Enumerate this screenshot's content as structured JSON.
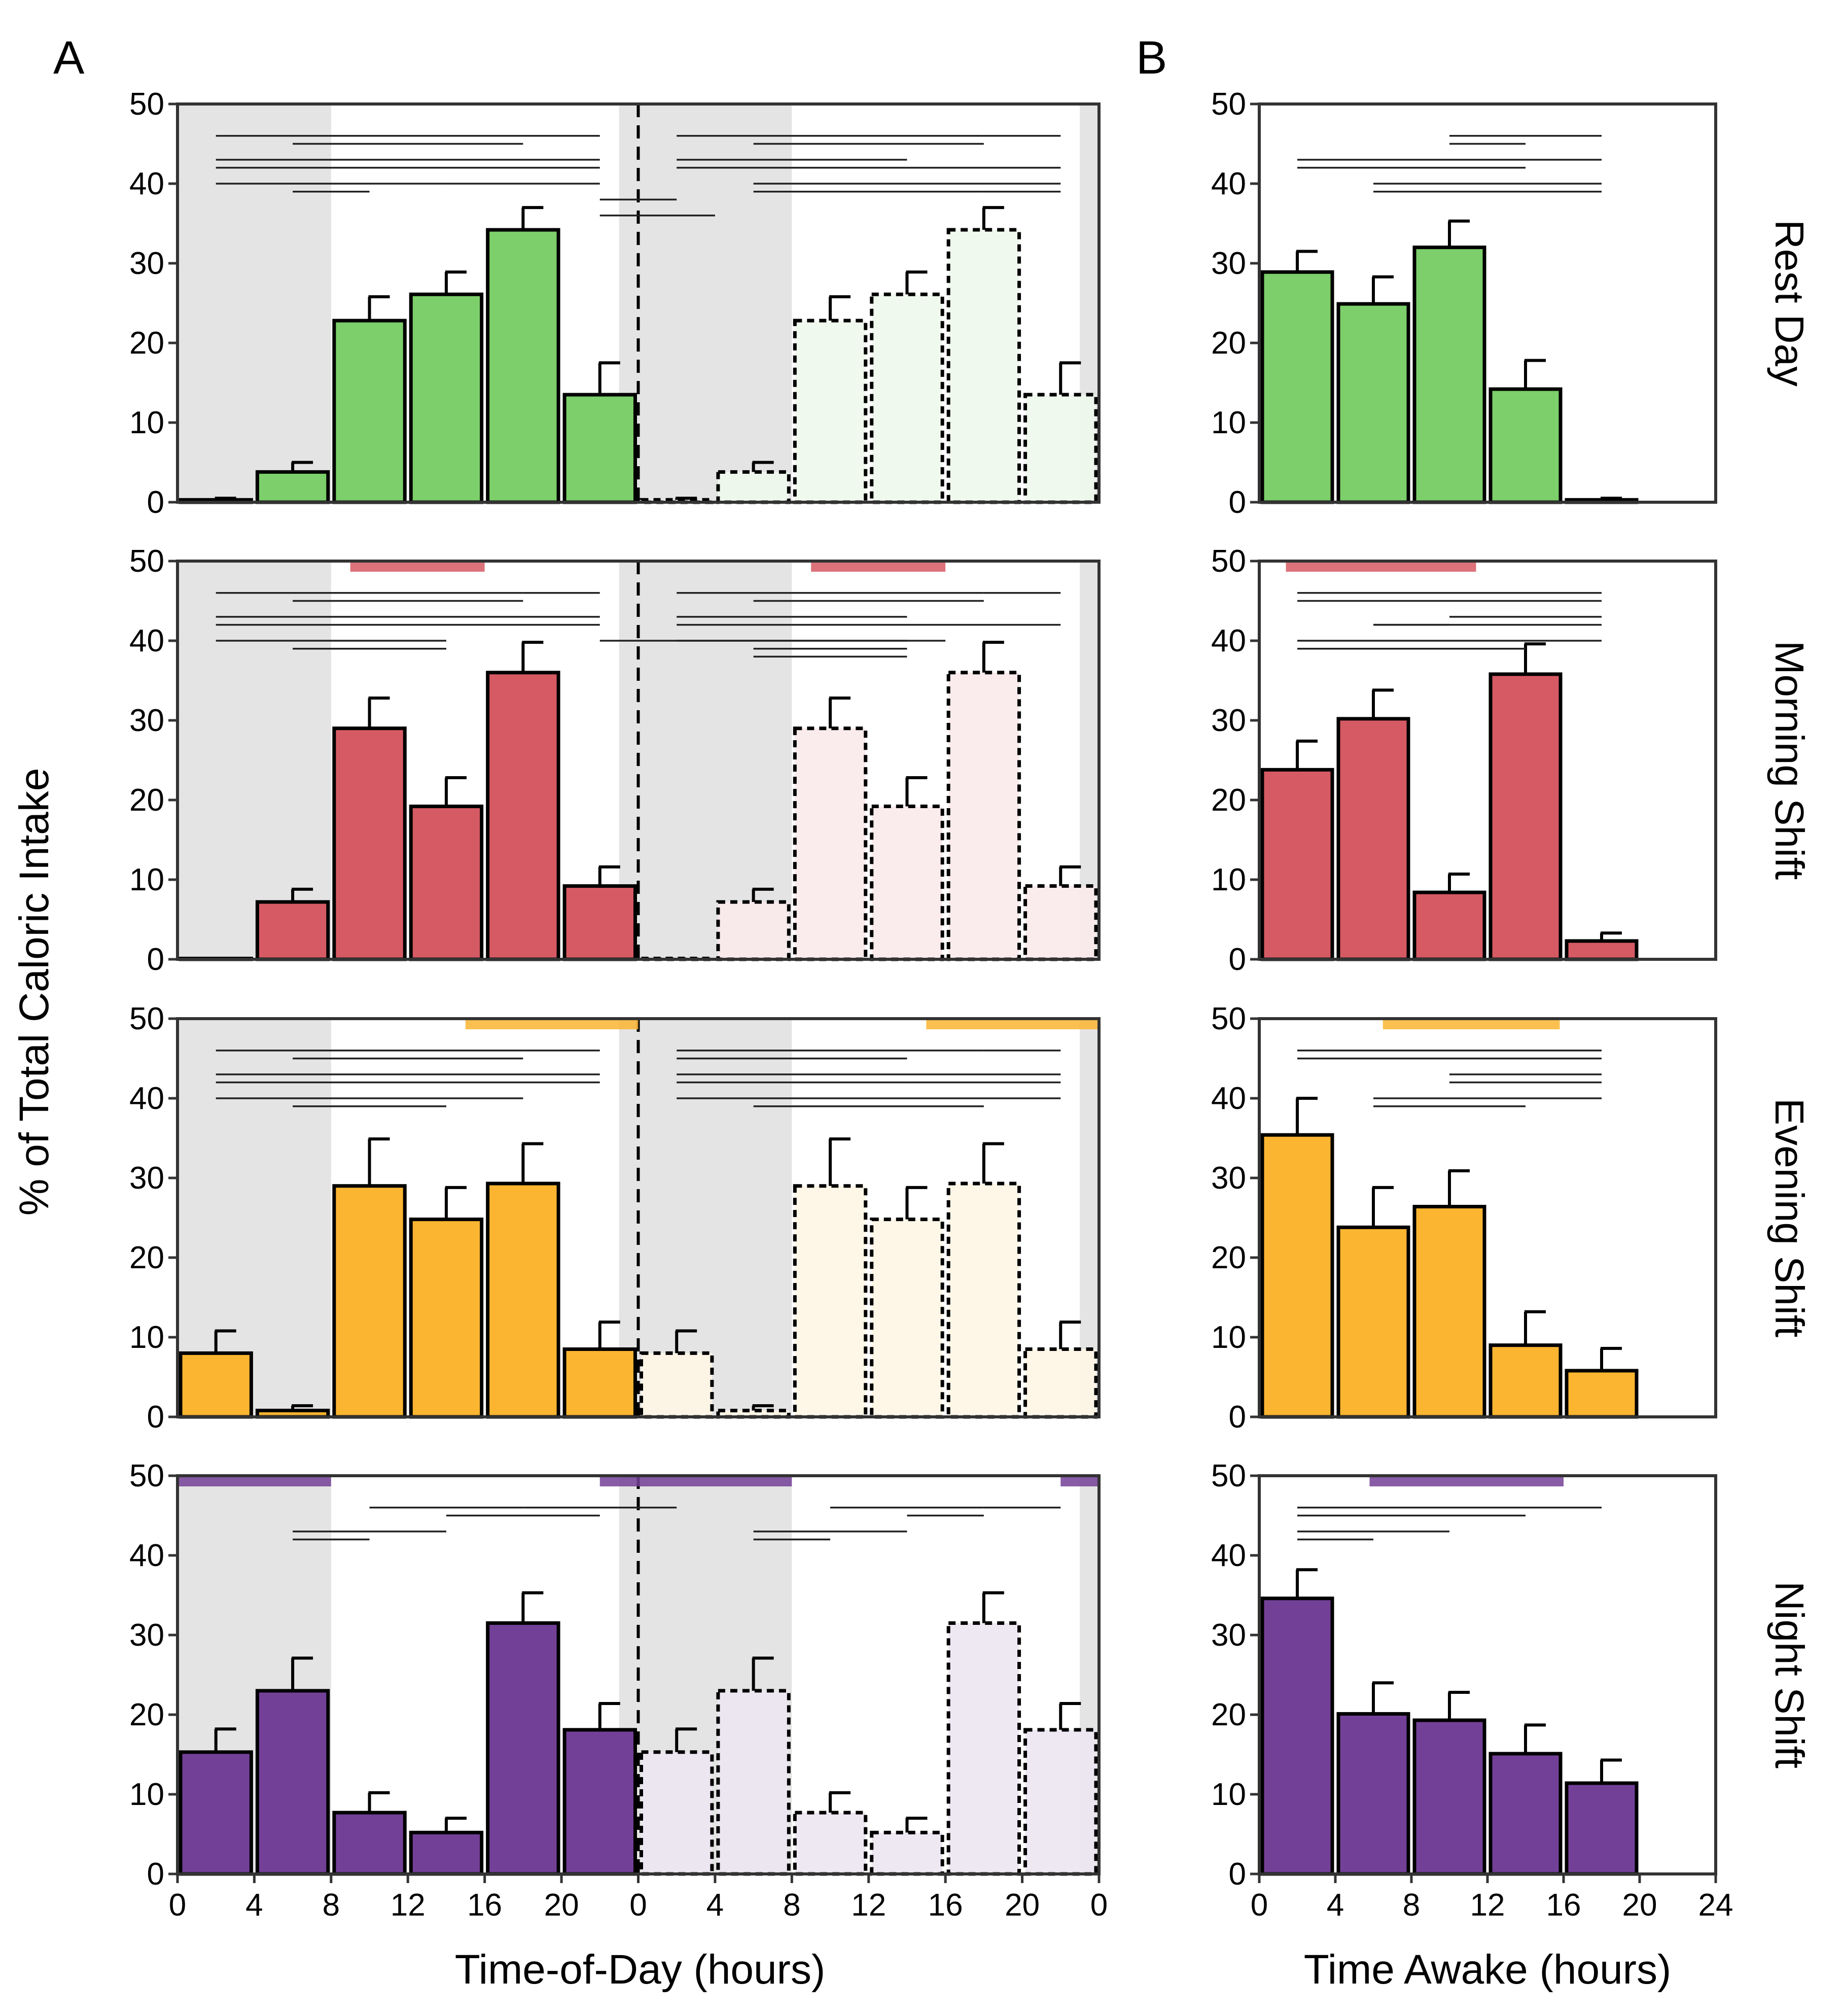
{
  "chart_data": {
    "type": "bar",
    "panel_labels": [
      "A",
      "B"
    ],
    "ylabel": "% of Total Caloric Intake",
    "ylim": [
      0,
      50
    ],
    "yticks": [
      0,
      10,
      20,
      30,
      40,
      50
    ],
    "panel_a": {
      "xlabel": "Time-of-Day (hours)",
      "xticks": [
        "0",
        "4",
        "8",
        "12",
        "16",
        "20",
        "0",
        "4",
        "8",
        "12",
        "16",
        "20",
        "0"
      ],
      "bin_hours": 4,
      "categories": [
        "0-4",
        "4-8",
        "8-12",
        "12-16",
        "16-20",
        "20-24"
      ],
      "night_shading_hours": [
        [
          0,
          8
        ],
        [
          23,
          32
        ],
        [
          47,
          48
        ]
      ],
      "midnight_divider_hour": 24,
      "note": "Hours 24-48 repeat the same values as a double-plotted day (dashed outline, pale fill)"
    },
    "panel_b": {
      "xlabel": "Time Awake (hours)",
      "xticks": [
        "0",
        "4",
        "8",
        "12",
        "16",
        "20",
        "24"
      ],
      "bin_hours": 4,
      "categories": [
        "0-4",
        "4-8",
        "8-12",
        "12-16",
        "16-20"
      ]
    },
    "series": [
      {
        "name": "Rest Day",
        "color": "#7ccf6a",
        "pale": "#eef8ec",
        "a_values": [
          0.3,
          3.8,
          22.8,
          26.1,
          34.2,
          13.5
        ],
        "a_errors": [
          0.2,
          1.2,
          3.0,
          2.8,
          2.8,
          4.0
        ],
        "b_values": [
          28.9,
          24.9,
          32.0,
          14.2,
          0.3
        ],
        "b_errors": [
          2.6,
          3.4,
          3.3,
          3.6,
          0.2
        ],
        "a_work_bars": [],
        "b_work_bars": []
      },
      {
        "name": "Morning Shift",
        "color": "#d65a64",
        "pale": "#fae9ea",
        "a_values": [
          0.1,
          7.2,
          29.0,
          19.2,
          36.0,
          9.2
        ],
        "a_errors": [
          0.1,
          1.6,
          3.8,
          3.6,
          3.8,
          2.4
        ],
        "b_values": [
          23.8,
          30.2,
          8.4,
          35.8,
          2.3
        ],
        "b_errors": [
          3.6,
          3.6,
          2.3,
          3.8,
          1.0
        ],
        "a_work_bars": [
          [
            9,
            16
          ],
          [
            33,
            40
          ]
        ],
        "b_work_bars": [
          [
            1.4,
            11.4
          ]
        ]
      },
      {
        "name": "Evening Shift",
        "color": "#fbb531",
        "pale": "#fef6e6",
        "a_values": [
          8.0,
          0.8,
          29.0,
          24.8,
          29.3,
          8.5
        ],
        "a_errors": [
          2.8,
          0.6,
          5.9,
          4.0,
          5.0,
          3.4
        ],
        "b_values": [
          35.4,
          23.8,
          26.4,
          9.0,
          5.8
        ],
        "b_errors": [
          4.6,
          5.0,
          4.5,
          4.2,
          2.8
        ],
        "a_work_bars": [
          [
            15,
            24
          ],
          [
            39,
            48
          ]
        ],
        "b_work_bars": [
          [
            6.5,
            15.8
          ]
        ]
      },
      {
        "name": "Night Shift",
        "color": "#734097",
        "pale": "#ece6f2",
        "a_values": [
          15.3,
          23.0,
          7.7,
          5.2,
          31.5,
          18.1
        ],
        "a_errors": [
          2.9,
          4.1,
          2.5,
          1.8,
          3.8,
          3.3
        ],
        "b_values": [
          34.6,
          20.1,
          19.3,
          15.1,
          11.4
        ],
        "b_errors": [
          3.6,
          3.9,
          3.5,
          3.6,
          2.9
        ],
        "a_work_bars": [
          [
            0,
            8
          ],
          [
            22,
            32
          ],
          [
            46,
            48
          ]
        ],
        "b_work_bars": [
          [
            5.8,
            16
          ]
        ]
      }
    ],
    "significance_lines": {
      "Rest Day": {
        "a": [
          [
            2,
            18,
            46
          ],
          [
            18,
            22,
            46
          ],
          [
            6,
            18,
            45
          ],
          [
            2,
            22,
            43
          ],
          [
            2,
            14,
            42
          ],
          [
            14,
            22,
            42
          ],
          [
            2,
            14,
            40
          ],
          [
            14,
            22,
            40
          ],
          [
            6,
            10,
            39
          ],
          [
            22,
            26,
            38
          ],
          [
            22,
            28,
            36
          ],
          [
            26,
            42,
            46
          ],
          [
            42,
            46,
            46
          ],
          [
            30,
            42,
            45
          ],
          [
            26,
            38,
            43
          ],
          [
            26,
            38,
            42
          ],
          [
            38,
            46,
            42
          ],
          [
            30,
            46,
            40
          ],
          [
            30,
            34,
            39
          ],
          [
            34,
            42,
            39
          ],
          [
            42,
            46,
            39
          ]
        ],
        "b": [
          [
            10,
            18,
            46
          ],
          [
            10,
            14,
            45
          ],
          [
            2,
            18,
            43
          ],
          [
            2,
            14,
            42
          ],
          [
            6,
            18,
            40
          ],
          [
            6,
            14,
            39
          ],
          [
            14,
            18,
            39
          ]
        ]
      },
      "Morning Shift": {
        "a": [
          [
            2,
            18,
            46
          ],
          [
            18,
            22,
            46
          ],
          [
            6,
            18,
            45
          ],
          [
            2,
            22,
            43
          ],
          [
            2,
            10,
            42
          ],
          [
            10,
            22,
            42
          ],
          [
            2,
            14,
            40
          ],
          [
            6,
            14,
            39
          ],
          [
            22,
            40,
            40
          ],
          [
            26,
            42,
            46
          ],
          [
            42,
            46,
            46
          ],
          [
            30,
            42,
            45
          ],
          [
            26,
            38,
            43
          ],
          [
            26,
            46,
            42
          ],
          [
            26,
            38,
            40
          ],
          [
            30,
            38,
            39
          ],
          [
            30,
            38,
            38
          ]
        ],
        "b": [
          [
            2,
            18,
            46
          ],
          [
            2,
            14,
            45
          ],
          [
            14,
            18,
            45
          ],
          [
            10,
            18,
            43
          ],
          [
            6,
            18,
            42
          ],
          [
            6,
            10,
            42
          ],
          [
            2,
            18,
            40
          ],
          [
            2,
            10,
            39
          ],
          [
            10,
            14,
            39
          ]
        ]
      },
      "Evening Shift": {
        "a": [
          [
            2,
            18,
            46
          ],
          [
            18,
            22,
            46
          ],
          [
            6,
            18,
            45
          ],
          [
            2,
            22,
            43
          ],
          [
            2,
            14,
            42
          ],
          [
            14,
            22,
            42
          ],
          [
            2,
            18,
            40
          ],
          [
            6,
            10,
            39
          ],
          [
            10,
            14,
            39
          ],
          [
            26,
            42,
            46
          ],
          [
            42,
            46,
            46
          ],
          [
            26,
            38,
            45
          ],
          [
            26,
            46,
            43
          ],
          [
            26,
            38,
            42
          ],
          [
            38,
            46,
            42
          ],
          [
            26,
            34,
            40
          ],
          [
            34,
            46,
            40
          ],
          [
            30,
            42,
            39
          ]
        ],
        "b": [
          [
            2,
            18,
            46
          ],
          [
            2,
            18,
            45
          ],
          [
            10,
            18,
            43
          ],
          [
            10,
            18,
            42
          ],
          [
            6,
            18,
            40
          ],
          [
            6,
            14,
            39
          ]
        ]
      },
      "Night Shift": {
        "a": [
          [
            10,
            18,
            46
          ],
          [
            18,
            26,
            46
          ],
          [
            14,
            22,
            45
          ],
          [
            6,
            14,
            43
          ],
          [
            6,
            10,
            42
          ],
          [
            34,
            42,
            46
          ],
          [
            42,
            46,
            46
          ],
          [
            38,
            42,
            45
          ],
          [
            30,
            38,
            43
          ],
          [
            30,
            34,
            42
          ]
        ],
        "b": [
          [
            2,
            18,
            46
          ],
          [
            2,
            14,
            45
          ],
          [
            2,
            10,
            43
          ],
          [
            2,
            6,
            42
          ]
        ]
      }
    }
  }
}
